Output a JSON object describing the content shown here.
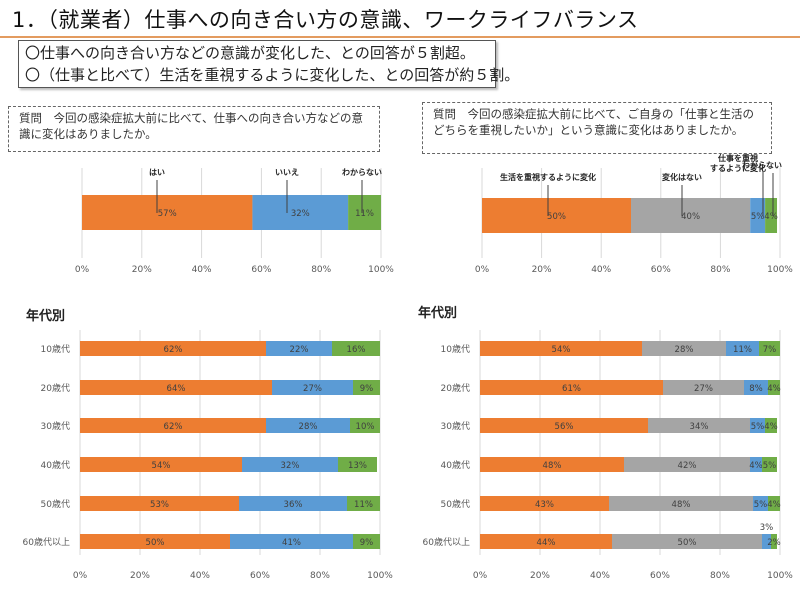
{
  "header": {
    "title": "1．（就業者）仕事への向き合い方の意識、ワークライフバランス",
    "summary_lines": [
      "〇仕事への向き合い方などの意識が変化した、との回答が５割超。",
      "〇（仕事と比べて）生活を重視するように変化した、との回答が約５割。"
    ]
  },
  "left": {
    "question": "質問　今回の感染症拡大前に比べて、仕事への向き合い方などの意識に変化はありましたか。",
    "age_section_label": "年代別"
  },
  "right": {
    "question": "質問　今回の感染症拡大前に比べて、ご自身の「仕事と生活のどちらを重視したいか」という意識に変化はありましたか。",
    "age_section_label": "年代別"
  },
  "colors": {
    "orange": "#ed7d31",
    "blue": "#5b9bd5",
    "green": "#70ad47",
    "gray": "#a5a5a5",
    "accent_rule": "#e39b5f"
  },
  "chart_data": [
    {
      "id": "overall-work-attitude",
      "type": "bar",
      "stacked": true,
      "orientation": "horizontal",
      "categories": [
        ""
      ],
      "series": [
        {
          "name": "はい",
          "values": [
            57
          ],
          "color": "#ed7d31"
        },
        {
          "name": "いいえ",
          "values": [
            32
          ],
          "color": "#5b9bd5"
        },
        {
          "name": "わからない",
          "values": [
            11
          ],
          "color": "#70ad47"
        }
      ],
      "xticks": [
        "0%",
        "20%",
        "40%",
        "60%",
        "80%",
        "100%"
      ],
      "xlim": [
        0,
        100
      ],
      "grid": true,
      "legend": "callout-labels-above"
    },
    {
      "id": "overall-life-work",
      "type": "bar",
      "stacked": true,
      "orientation": "horizontal",
      "categories": [
        ""
      ],
      "series": [
        {
          "name": "生活を重視するように変化",
          "values": [
            50
          ],
          "color": "#ed7d31"
        },
        {
          "name": "変化はない",
          "values": [
            40
          ],
          "color": "#a5a5a5"
        },
        {
          "name": "仕事を重視するように変化",
          "values": [
            5
          ],
          "color": "#5b9bd5"
        },
        {
          "name": "わからない",
          "values": [
            4
          ],
          "color": "#70ad47"
        }
      ],
      "xticks": [
        "0%",
        "20%",
        "40%",
        "60%",
        "80%",
        "100%"
      ],
      "xlim": [
        0,
        100
      ],
      "grid": true,
      "legend": "callout-labels-above"
    },
    {
      "id": "age-work-attitude",
      "type": "bar",
      "stacked": true,
      "orientation": "horizontal",
      "title": "年代別",
      "categories": [
        "10歳代",
        "20歳代",
        "30歳代",
        "40歳代",
        "50歳代",
        "60歳代以上"
      ],
      "series": [
        {
          "name": "はい",
          "values": [
            62,
            64,
            62,
            54,
            53,
            50
          ],
          "color": "#ed7d31"
        },
        {
          "name": "いいえ",
          "values": [
            22,
            27,
            28,
            32,
            36,
            41
          ],
          "color": "#5b9bd5"
        },
        {
          "name": "わからない",
          "values": [
            16,
            9,
            10,
            13,
            11,
            9
          ],
          "color": "#70ad47"
        }
      ],
      "xticks": [
        "0%",
        "20%",
        "40%",
        "60%",
        "80%",
        "100%"
      ],
      "xlim": [
        0,
        100
      ],
      "grid": true
    },
    {
      "id": "age-life-work",
      "type": "bar",
      "stacked": true,
      "orientation": "horizontal",
      "title": "年代別",
      "categories": [
        "10歳代",
        "20歳代",
        "30歳代",
        "40歳代",
        "50歳代",
        "60歳代以上"
      ],
      "series": [
        {
          "name": "生活を重視するように変化",
          "values": [
            54,
            61,
            56,
            48,
            43,
            44
          ],
          "color": "#ed7d31"
        },
        {
          "name": "変化はない",
          "values": [
            28,
            27,
            34,
            42,
            48,
            50
          ],
          "color": "#a5a5a5"
        },
        {
          "name": "仕事を重視するように変化",
          "values": [
            11,
            8,
            5,
            4,
            5,
            3
          ],
          "color": "#5b9bd5"
        },
        {
          "name": "わからない",
          "values": [
            7,
            4,
            4,
            5,
            4,
            2
          ],
          "color": "#70ad47"
        }
      ],
      "xticks": [
        "0%",
        "20%",
        "40%",
        "60%",
        "80%",
        "100%"
      ],
      "xlim": [
        0,
        100
      ],
      "grid": true
    }
  ]
}
